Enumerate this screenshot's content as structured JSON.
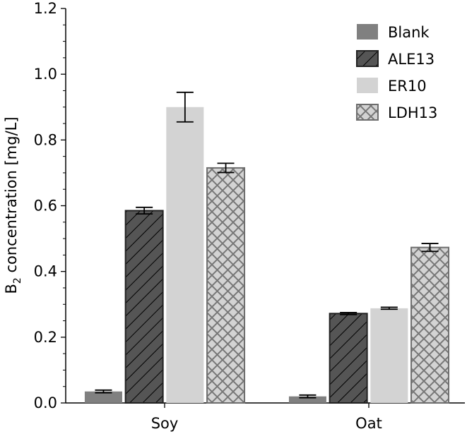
{
  "chart_data": {
    "type": "bar",
    "categories": [
      "Soy",
      "Oat"
    ],
    "series": [
      {
        "name": "Blank",
        "values": [
          0.035,
          0.02
        ],
        "errors": [
          0.004,
          0.004
        ],
        "color": "#808080",
        "pattern": "solid"
      },
      {
        "name": "ALE13",
        "values": [
          0.585,
          0.272
        ],
        "errors": [
          0.01,
          0.003
        ],
        "color": "#555555",
        "pattern": "diagonal-hatch"
      },
      {
        "name": "ER10",
        "values": [
          0.9,
          0.288
        ],
        "errors": [
          0.045,
          0.003
        ],
        "color": "#d3d3d3",
        "pattern": "solid"
      },
      {
        "name": "LDH13",
        "values": [
          0.715,
          0.473
        ],
        "errors": [
          0.014,
          0.012
        ],
        "color": "#d3d3d3",
        "pattern": "cross-hatch"
      }
    ],
    "ylabel_main": "B",
    "ylabel_sub": "2",
    "ylabel_rest": " concentration [mg/L]",
    "ylim": [
      0,
      1.2
    ],
    "yticks": [
      "0.0",
      "0.2",
      "0.4",
      "0.6",
      "0.8",
      "1.0",
      "1.2"
    ],
    "grid": false,
    "legend_position": "top-right"
  }
}
